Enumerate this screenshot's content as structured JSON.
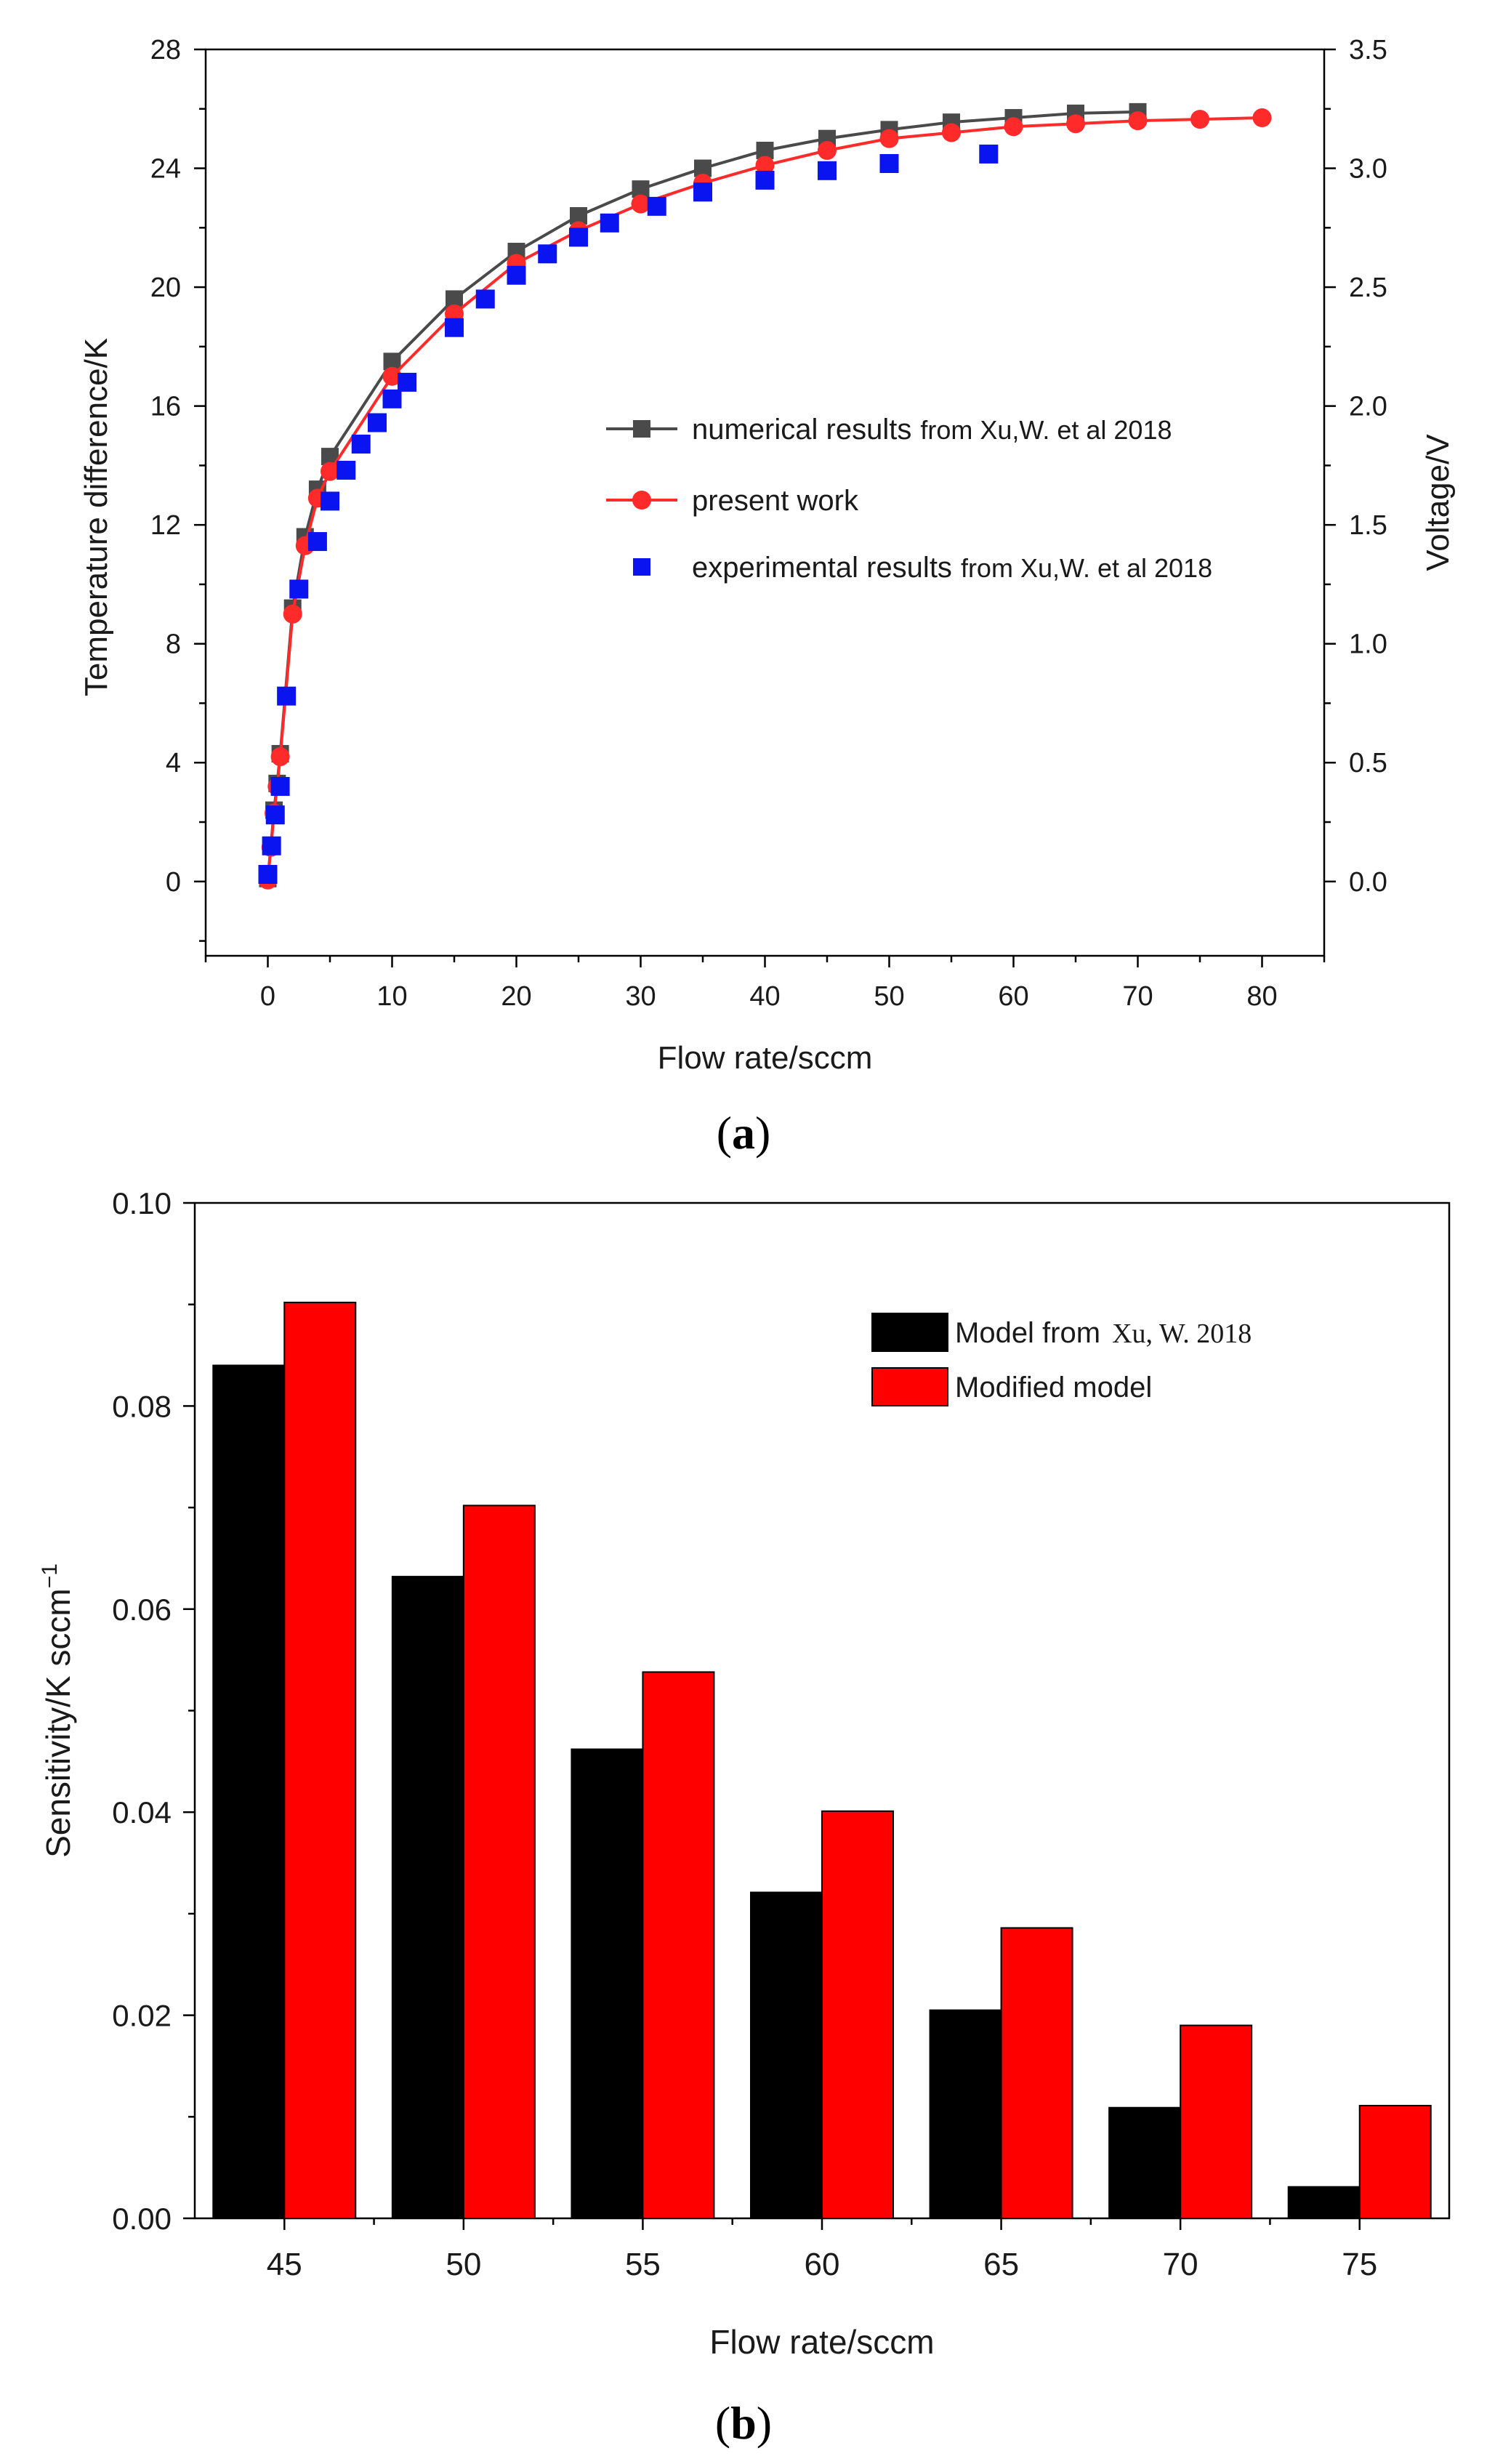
{
  "chart_data": [
    {
      "type": "line",
      "panel_label": "(a)",
      "panel_letter": "a",
      "xlabel": "Flow rate/sccm",
      "ylabel": "Temperature difference/K",
      "y2label": "Voltage/V",
      "xlim": [
        -5,
        85
      ],
      "ylim": [
        -2.5,
        28
      ],
      "y2lim": [
        -0.3125,
        3.5
      ],
      "xticks": [
        "0",
        "10",
        "20",
        "30",
        "40",
        "50",
        "60",
        "70",
        "80"
      ],
      "yticks": [
        "0",
        "4",
        "8",
        "12",
        "16",
        "20",
        "24",
        "28"
      ],
      "y2ticks": [
        "0.0",
        "0.5",
        "1.0",
        "1.5",
        "2.0",
        "2.5",
        "3.0",
        "3.5"
      ],
      "grid": false,
      "legend_position": "center-right",
      "colors": {
        "numerical": "#4a4a4a",
        "present": "#ff2a2a",
        "experimental": "#0a14f0"
      },
      "series": [
        {
          "name": "numerical results",
          "source": "from Xu,W. et al 2018",
          "marker": "square",
          "axis": "left",
          "x": [
            0,
            0.25,
            0.5,
            0.75,
            1,
            2,
            3,
            4,
            5,
            10,
            15,
            20,
            25,
            30,
            35,
            40,
            45,
            50,
            55,
            60,
            65,
            70
          ],
          "y": [
            0.1,
            1.2,
            2.4,
            3.3,
            4.3,
            9.2,
            11.6,
            13.2,
            14.3,
            17.5,
            19.6,
            21.2,
            22.4,
            23.3,
            24.0,
            24.6,
            25.0,
            25.3,
            25.55,
            25.7,
            25.85,
            25.9
          ]
        },
        {
          "name": "present work",
          "marker": "circle",
          "axis": "left",
          "x": [
            0,
            0.25,
            0.5,
            0.75,
            1,
            2,
            3,
            4,
            5,
            10,
            15,
            20,
            25,
            30,
            35,
            40,
            45,
            50,
            55,
            60,
            65,
            70,
            75,
            80
          ],
          "y": [
            0.05,
            1.15,
            2.3,
            3.2,
            4.2,
            9.0,
            11.3,
            12.9,
            13.8,
            17.0,
            19.1,
            20.8,
            21.9,
            22.8,
            23.5,
            24.1,
            24.6,
            25.0,
            25.2,
            25.4,
            25.5,
            25.6,
            25.65,
            25.7
          ]
        },
        {
          "name": "experimental results",
          "source": "from Xu,W. et al 2018",
          "marker": "square",
          "axis": "right",
          "x": [
            0,
            0.3,
            0.6,
            1,
            1.5,
            2.5,
            4,
            5,
            6.3,
            7.5,
            8.8,
            10,
            11.2,
            15,
            17.5,
            20,
            22.5,
            25,
            27.5,
            31.3,
            35,
            40,
            45,
            50,
            58
          ],
          "y": [
            0.03,
            0.15,
            0.28,
            0.4,
            0.78,
            1.23,
            1.43,
            1.6,
            1.73,
            1.84,
            1.93,
            2.03,
            2.1,
            2.33,
            2.45,
            2.55,
            2.64,
            2.71,
            2.77,
            2.84,
            2.9,
            2.95,
            2.99,
            3.02,
            3.06
          ]
        }
      ]
    },
    {
      "type": "bar",
      "panel_label": "(b)",
      "panel_letter": "b",
      "xlabel": "Flow rate/sccm",
      "ylabel": "Sensitivity/K sccm",
      "ylabel_exp": "−1",
      "categories": [
        "45",
        "50",
        "55",
        "60",
        "65",
        "70",
        "75"
      ],
      "ylim": [
        0,
        0.1
      ],
      "yticks": [
        "0.00",
        "0.02",
        "0.04",
        "0.06",
        "0.08",
        "0.10"
      ],
      "grid": false,
      "legend_position": "top-right",
      "colors": {
        "model": "#000000",
        "modified": "#ff0000"
      },
      "series": [
        {
          "name": "Model from",
          "source": "Xu, W. 2018",
          "values": [
            0.084,
            0.0632,
            0.0462,
            0.0321,
            0.0205,
            0.0109,
            0.0031
          ]
        },
        {
          "name": "Modified model",
          "values": [
            0.0902,
            0.0702,
            0.0538,
            0.0401,
            0.0286,
            0.019,
            0.0111
          ]
        }
      ]
    }
  ]
}
